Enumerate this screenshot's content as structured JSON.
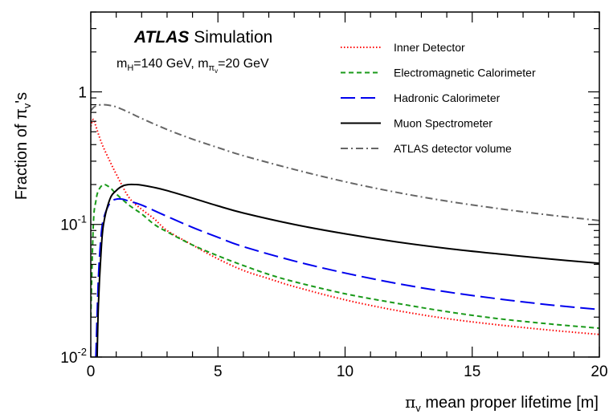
{
  "chart_data": {
    "type": "line",
    "title": "",
    "xlabel_symbol": "π",
    "xlabel_sub": "v",
    "xlabel_rest": " mean proper lifetime [m]",
    "ylabel_main": "Fraction of π",
    "ylabel_sub": "v",
    "ylabel_end": "'s",
    "y_scale": "log",
    "xlim": [
      0,
      20
    ],
    "ylim": [
      0.01,
      4
    ],
    "x_ticks": [
      {
        "v": 0,
        "label": "0"
      },
      {
        "v": 5,
        "label": "5"
      },
      {
        "v": 10,
        "label": "10"
      },
      {
        "v": 15,
        "label": "15"
      },
      {
        "v": 20,
        "label": "20"
      }
    ],
    "y_ticks": [
      {
        "v": 0.01,
        "base": "10",
        "exp": "-2"
      },
      {
        "v": 0.1,
        "base": "10",
        "exp": "-1"
      },
      {
        "v": 1,
        "base": "1",
        "exp": ""
      }
    ],
    "grid": false,
    "legend_position": "top-right",
    "annotation": {
      "atlas": "ATLAS",
      "simulation": " Simulation",
      "mass_line": {
        "a": "m",
        "a_sub": "H",
        "b": "=140 GeV, m",
        "b_sub": "π",
        "b_subsub": "v",
        "c": "=20 GeV"
      }
    },
    "series": [
      {
        "name": "Inner Detector",
        "color": "#ff0000",
        "dash": "dotted",
        "x": [
          0,
          0.1,
          0.2,
          0.35,
          0.5,
          0.75,
          1,
          1.5,
          2,
          2.5,
          3,
          4,
          5,
          6,
          7,
          8,
          10,
          12,
          14,
          16,
          18,
          20
        ],
        "y": [
          0.55,
          0.62,
          0.55,
          0.45,
          0.38,
          0.3,
          0.24,
          0.16,
          0.13,
          0.11,
          0.09,
          0.07,
          0.055,
          0.045,
          0.039,
          0.034,
          0.027,
          0.0225,
          0.0195,
          0.0175,
          0.016,
          0.0148
        ]
      },
      {
        "name": "Electromagnetic Calorimeter",
        "color": "#1a9a1a",
        "dash": "dashed",
        "x": [
          0,
          0.1,
          0.2,
          0.3,
          0.5,
          0.75,
          1,
          1.5,
          2,
          2.5,
          3,
          4,
          5,
          6,
          7,
          8,
          10,
          12,
          14,
          16,
          18,
          20
        ],
        "y": [
          0.02,
          0.1,
          0.15,
          0.18,
          0.2,
          0.19,
          0.17,
          0.14,
          0.12,
          0.1,
          0.088,
          0.07,
          0.058,
          0.049,
          0.042,
          0.037,
          0.03,
          0.0255,
          0.022,
          0.0195,
          0.0178,
          0.0165
        ]
      },
      {
        "name": "Hadronic Calorimeter",
        "color": "#0000ee",
        "dash": "longdash",
        "x": [
          0.2,
          0.3,
          0.4,
          0.5,
          0.75,
          1,
          1.25,
          1.5,
          2,
          3,
          4,
          5,
          6,
          8,
          10,
          12,
          14,
          16,
          18,
          20
        ],
        "y": [
          0.01,
          0.04,
          0.08,
          0.11,
          0.145,
          0.155,
          0.155,
          0.15,
          0.14,
          0.115,
          0.095,
          0.08,
          0.068,
          0.053,
          0.043,
          0.036,
          0.031,
          0.0275,
          0.0248,
          0.0228
        ]
      },
      {
        "name": "Muon Spectrometer",
        "color": "#000000",
        "dash": "solid",
        "x": [
          0.25,
          0.3,
          0.4,
          0.5,
          0.75,
          1,
          1.25,
          1.5,
          1.75,
          2,
          2.5,
          3,
          4,
          5,
          6,
          8,
          10,
          12,
          14,
          16,
          18,
          20
        ],
        "y": [
          0.01,
          0.025,
          0.06,
          0.1,
          0.155,
          0.18,
          0.195,
          0.2,
          0.2,
          0.198,
          0.19,
          0.18,
          0.158,
          0.138,
          0.122,
          0.1,
          0.085,
          0.074,
          0.066,
          0.06,
          0.055,
          0.051
        ]
      },
      {
        "name": "ATLAS detector volume",
        "color": "#666666",
        "dash": "dashdot",
        "x": [
          0,
          0.1,
          0.25,
          0.5,
          0.75,
          1,
          1.5,
          2,
          3,
          4,
          5,
          6,
          8,
          10,
          12,
          14,
          16,
          18,
          20
        ],
        "y": [
          0.72,
          0.76,
          0.79,
          0.8,
          0.79,
          0.77,
          0.7,
          0.63,
          0.52,
          0.44,
          0.38,
          0.33,
          0.26,
          0.21,
          0.175,
          0.15,
          0.132,
          0.118,
          0.107
        ]
      }
    ]
  }
}
